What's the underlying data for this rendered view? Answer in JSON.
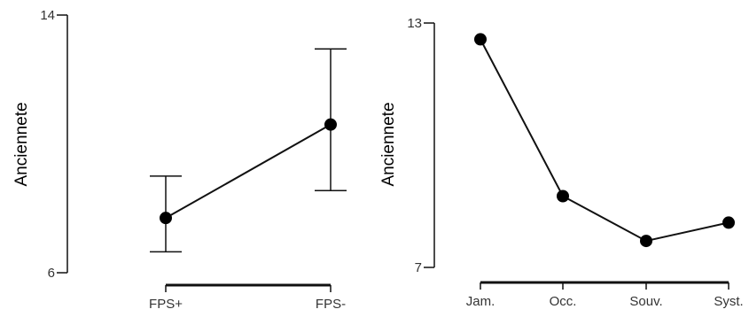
{
  "chart_data": [
    {
      "type": "line",
      "title": "",
      "xlabel": "",
      "ylabel": "Anciennete",
      "categories": [
        "FPS+",
        "FPS-"
      ],
      "values": [
        7.7,
        10.6
      ],
      "error_bars": [
        {
          "low": 6.65,
          "high": 9.0
        },
        {
          "low": 8.55,
          "high": 12.95
        }
      ],
      "ylim": [
        6,
        14
      ],
      "y_tick_labels": [
        "6",
        "14"
      ],
      "grid": false,
      "legend": "none",
      "color": "#000000"
    },
    {
      "type": "line",
      "title": "",
      "xlabel": "",
      "ylabel": "Anciennete",
      "categories": [
        "Jam.",
        "Occ.",
        "Souv.",
        "Syst."
      ],
      "values": [
        12.6,
        8.75,
        7.65,
        8.1
      ],
      "ylim": [
        7,
        13
      ],
      "y_tick_labels": [
        "7",
        "13"
      ],
      "grid": false,
      "legend": "none",
      "color": "#000000"
    }
  ]
}
